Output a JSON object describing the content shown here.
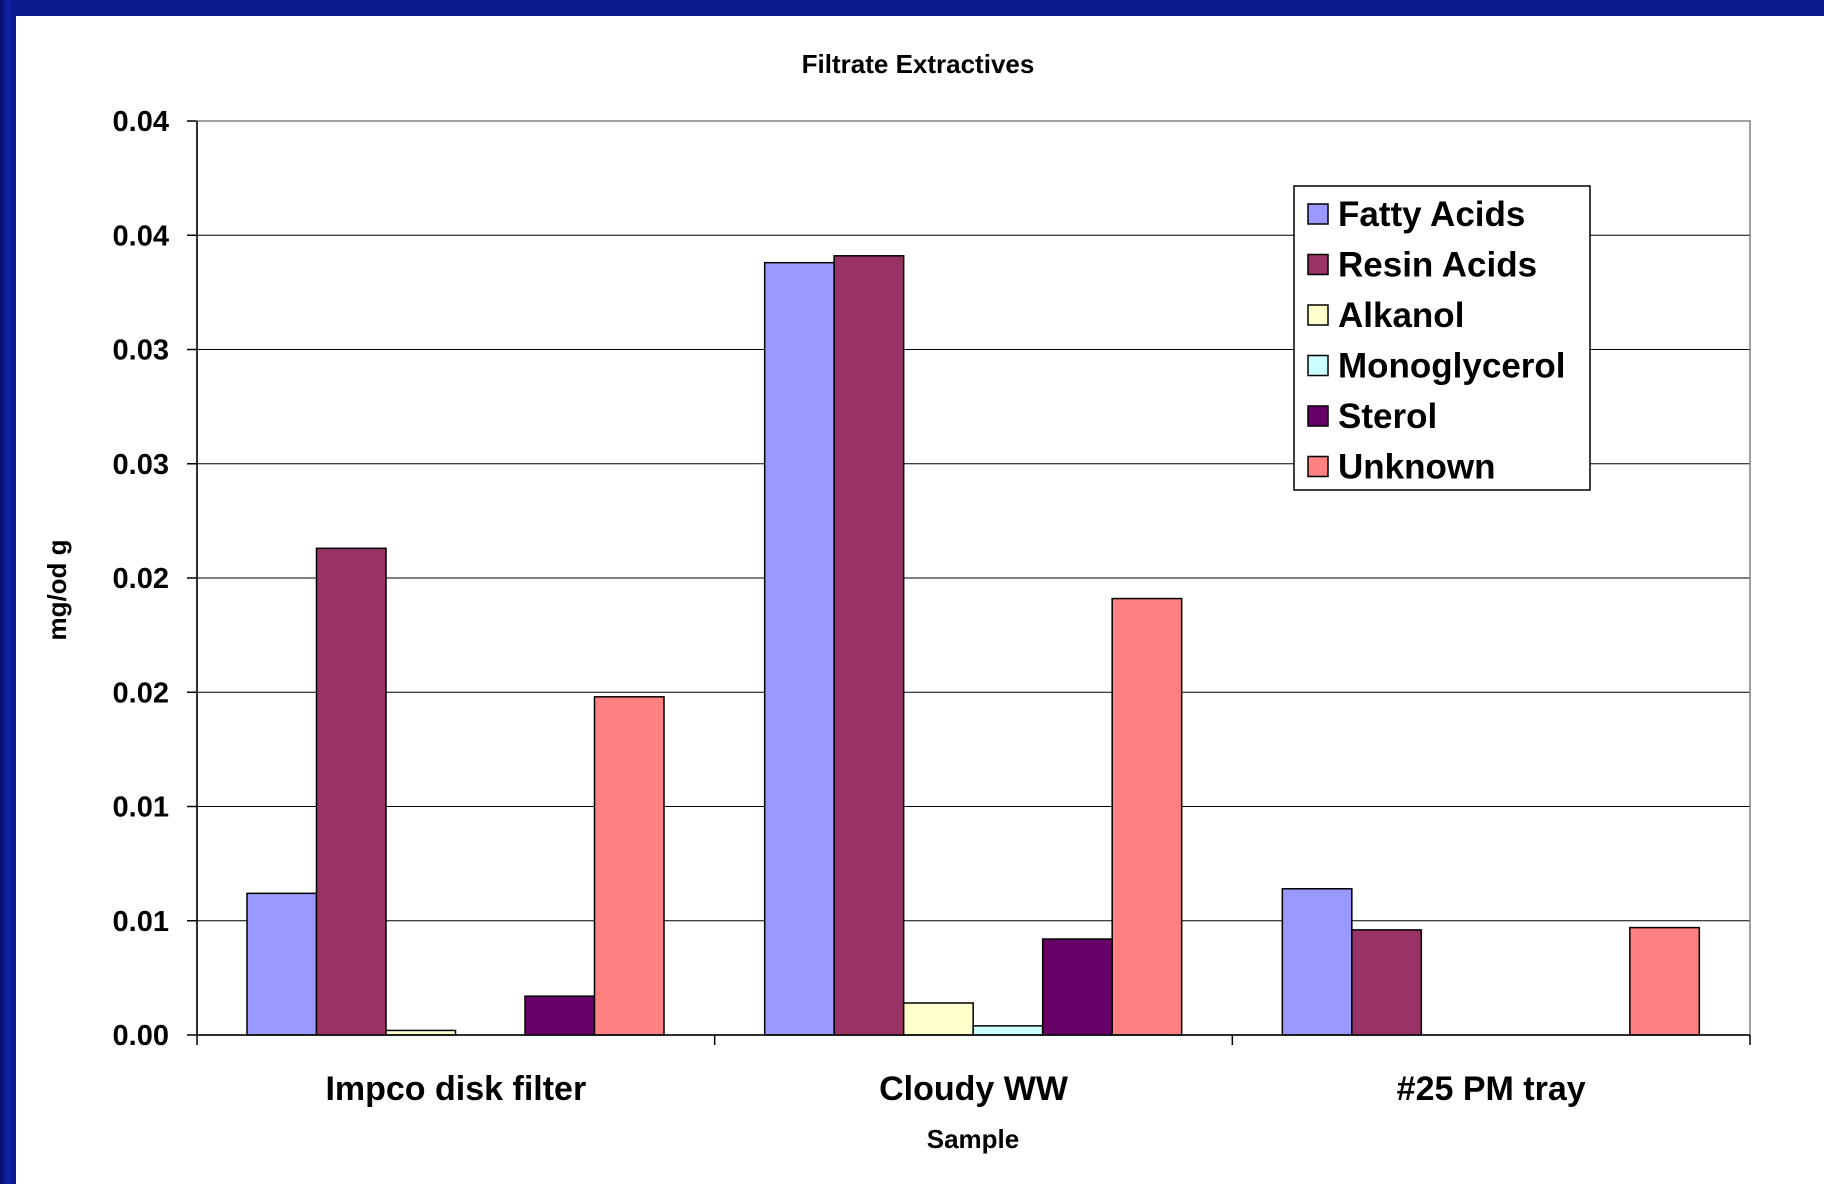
{
  "chart_data": {
    "type": "bar",
    "title": "Filtrate Extractives",
    "xlabel": "Sample",
    "ylabel": "mg/od g",
    "categories": [
      "Impco disk filter",
      "Cloudy WW",
      "#25 PM tray"
    ],
    "ytick_labels": [
      "0.00",
      "0.01",
      "0.01",
      "0.02",
      "0.02",
      "0.03",
      "0.03",
      "0.04",
      "0.04"
    ],
    "ylim": [
      0,
      0.04
    ],
    "grid": true,
    "legend_position": "top-right",
    "series": [
      {
        "name": "Fatty Acids",
        "color": "#9999ff",
        "values": [
          0.0062,
          0.0338,
          0.0064
        ]
      },
      {
        "name": "Resin Acids",
        "color": "#993366",
        "values": [
          0.0213,
          0.0341,
          0.0046
        ]
      },
      {
        "name": "Alkanol",
        "color": "#ffffcc",
        "values": [
          0.0002,
          0.0014,
          0
        ]
      },
      {
        "name": "Monoglycerol",
        "color": "#ccffff",
        "values": [
          0,
          0.0004,
          0
        ]
      },
      {
        "name": "Sterol",
        "color": "#660066",
        "values": [
          0.0017,
          0.0042,
          0
        ]
      },
      {
        "name": "Unknown",
        "color": "#ff8080",
        "values": [
          0.0148,
          0.0191,
          0.0047
        ]
      }
    ]
  }
}
